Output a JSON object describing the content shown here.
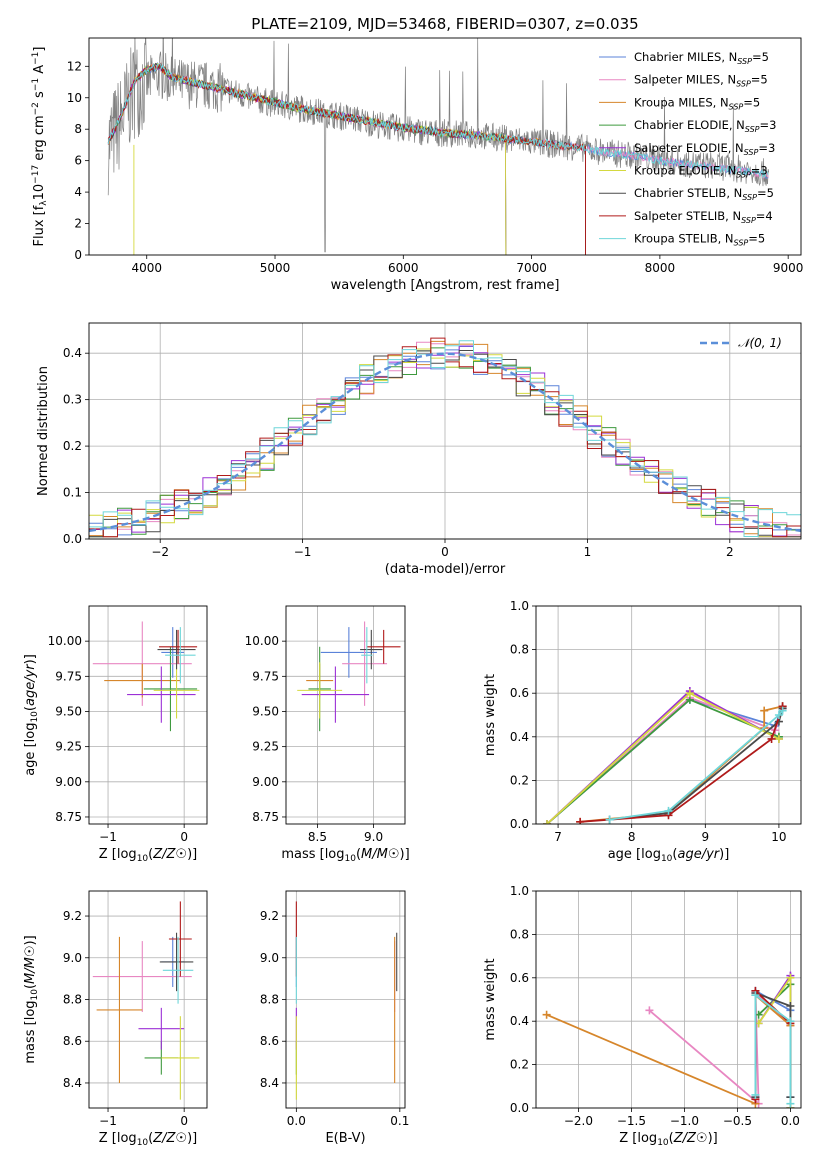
{
  "figure": {
    "title": "PLATE=2109, MJD=53468, FIBERID=0307, z=0.035"
  },
  "models": [
    {
      "name": "Chabrier MILES, N_SSP=5",
      "color": "#5b83d9"
    },
    {
      "name": "Salpeter MILES, N_SSP=5",
      "color": "#e887c2"
    },
    {
      "name": "Kroupa MILES, N_SSP=5",
      "color": "#d6862b"
    },
    {
      "name": "Chabrier ELODIE, N_SSP=3",
      "color": "#3f9a3f"
    },
    {
      "name": "Salpeter ELODIE, N_SSP=3",
      "color": "#9b30d6"
    },
    {
      "name": "Kroupa ELODIE, N_SSP=3",
      "color": "#d4d93f"
    },
    {
      "name": "Chabrier STELIB, N_SSP=5",
      "color": "#4a4a4a"
    },
    {
      "name": "Salpeter STELIB, N_SSP=4",
      "color": "#b01a1a"
    },
    {
      "name": "Kroupa STELIB, N_SSP=5",
      "color": "#6fd6d9"
    }
  ],
  "chart_data": [
    {
      "id": "spectrum",
      "type": "line",
      "xlabel": "wavelength [Angstrom, rest frame]",
      "ylabel": "Flux [f_λ 10^-17 erg cm^-2 s^-1 A^-1]",
      "xlim": [
        3550,
        9100
      ],
      "ylim": [
        0,
        13.8
      ],
      "xticks": [
        4000,
        5000,
        6000,
        7000,
        8000,
        9000
      ],
      "yticks": [
        0,
        2,
        4,
        6,
        8,
        10,
        12
      ],
      "legend": "top-right",
      "grid": false,
      "data_color": "#808080",
      "data_x": [
        3700,
        3800,
        3900,
        4000,
        4100,
        4200,
        4400,
        4600,
        4800,
        5000,
        5200,
        5400,
        5600,
        5800,
        6000,
        6200,
        6400,
        6600,
        6800,
        7000,
        7200,
        7400,
        7600,
        7800,
        8000,
        8200,
        8400,
        8600,
        8850
      ],
      "data_y": [
        7.0,
        8.5,
        10.5,
        11.0,
        11.5,
        11.0,
        10.8,
        10.6,
        10.0,
        9.6,
        9.3,
        9.0,
        8.7,
        8.3,
        8.0,
        7.8,
        7.7,
        7.6,
        7.4,
        7.2,
        7.0,
        6.8,
        6.5,
        6.3,
        6.1,
        5.8,
        5.7,
        5.5,
        5.2
      ],
      "model_x": [
        3700,
        3800,
        3900,
        4000,
        4100,
        4200,
        4400,
        4600,
        4800,
        5000,
        5200,
        5400,
        5600,
        5800,
        6000,
        6200,
        6400,
        6600,
        6800,
        7000,
        7200,
        7400,
        7600,
        7800,
        8000,
        8200,
        8400,
        8600,
        8850
      ],
      "model_y": [
        7.2,
        8.8,
        11.0,
        11.8,
        12.0,
        11.3,
        10.9,
        10.5,
        10.1,
        9.7,
        9.3,
        9.0,
        8.7,
        8.4,
        8.1,
        7.9,
        7.7,
        7.6,
        7.4,
        7.2,
        7.0,
        6.8,
        6.5,
        6.3,
        6.0,
        5.8,
        5.6,
        5.4,
        5.1
      ],
      "model_ranges": [
        [
          3700,
          9100
        ],
        [
          3700,
          9100
        ],
        [
          3700,
          7420
        ],
        [
          3700,
          6800
        ],
        [
          3700,
          6800
        ],
        [
          3900,
          6800
        ],
        [
          3700,
          7420
        ],
        [
          3700,
          7420
        ],
        [
          3700,
          9100
        ]
      ]
    },
    {
      "id": "residuals",
      "type": "line",
      "xlabel": "(data-model)/error",
      "ylabel": "Normed distribution",
      "xlim": [
        -2.5,
        2.5
      ],
      "ylim": [
        0,
        0.465
      ],
      "xticks": [
        -2,
        -1,
        0,
        1,
        2
      ],
      "yticks": [
        0.0,
        0.1,
        0.2,
        0.3,
        0.4
      ],
      "grid": true,
      "legend": "top-right",
      "reference_label": "𝒩(0, 1)",
      "reference_color": "#5b8fd9",
      "bin_width": 0.1
    },
    {
      "id": "age_vs_Z",
      "type": "scatter",
      "xlabel": "Z [log10(Z/Z☉)]",
      "ylabel": "age  [log10(age/yr)]",
      "xlim": [
        -1.25,
        0.3
      ],
      "ylim": [
        8.7,
        10.25
      ],
      "xticks": [
        -1,
        0
      ],
      "yticks": [
        8.75,
        9.0,
        9.25,
        9.5,
        9.75,
        10.0
      ],
      "grid": true,
      "points": [
        {
          "x": -0.15,
          "y": 9.92,
          "xerr": 0.15,
          "yerr": 0.18
        },
        {
          "x": -0.55,
          "y": 9.84,
          "xerr": 0.65,
          "yerr": 0.3
        },
        {
          "x": -0.55,
          "y": 9.72,
          "xerr": 0.5,
          "yerr": 0.12
        },
        {
          "x": -0.18,
          "y": 9.66,
          "xerr": 0.35,
          "yerr": 0.3
        },
        {
          "x": -0.3,
          "y": 9.62,
          "xerr": 0.45,
          "yerr": 0.2
        },
        {
          "x": -0.1,
          "y": 9.65,
          "xerr": 0.3,
          "yerr": 0.2
        },
        {
          "x": -0.1,
          "y": 9.94,
          "xerr": 0.25,
          "yerr": 0.14
        },
        {
          "x": -0.08,
          "y": 9.96,
          "xerr": 0.25,
          "yerr": 0.12
        },
        {
          "x": -0.05,
          "y": 9.9,
          "xerr": 0.2,
          "yerr": 0.2
        }
      ]
    },
    {
      "id": "age_vs_mass",
      "type": "scatter",
      "xlabel": "mass [log10(M/M☉)]",
      "ylabel": "",
      "xlim": [
        8.22,
        9.28
      ],
      "ylim": [
        8.7,
        10.25
      ],
      "xticks": [
        8.5,
        9.0
      ],
      "yticks": [
        8.75,
        9.0,
        9.25,
        9.5,
        9.75,
        10.0
      ],
      "grid": true,
      "points": [
        {
          "x": 8.78,
          "y": 9.92,
          "xerr": 0.25,
          "yerr": 0.18
        },
        {
          "x": 8.92,
          "y": 9.84,
          "xerr": 0.2,
          "yerr": 0.3
        },
        {
          "x": 8.52,
          "y": 9.72,
          "xerr": 0.12,
          "yerr": 0.12
        },
        {
          "x": 8.52,
          "y": 9.66,
          "xerr": 0.1,
          "yerr": 0.3
        },
        {
          "x": 8.66,
          "y": 9.62,
          "xerr": 0.3,
          "yerr": 0.2
        },
        {
          "x": 8.52,
          "y": 9.65,
          "xerr": 0.2,
          "yerr": 0.2
        },
        {
          "x": 8.98,
          "y": 9.94,
          "xerr": 0.1,
          "yerr": 0.14
        },
        {
          "x": 9.09,
          "y": 9.96,
          "xerr": 0.15,
          "yerr": 0.12
        },
        {
          "x": 8.94,
          "y": 9.9,
          "xerr": 0.05,
          "yerr": 0.2
        }
      ]
    },
    {
      "id": "mass_weight_vs_age",
      "type": "line",
      "xlabel": "age  [log10(age/yr)]",
      "ylabel": "mass weight",
      "xlim": [
        6.7,
        10.3
      ],
      "ylim": [
        0,
        1.0
      ],
      "xticks": [
        7,
        8,
        9,
        10
      ],
      "yticks": [
        0.0,
        0.2,
        0.4,
        0.6,
        0.8,
        1.0
      ],
      "grid": true,
      "series": [
        {
          "x": [
            6.85,
            8.79,
            9.95,
            10.05
          ],
          "y": [
            0.0,
            0.57,
            0.45,
            0.54
          ]
        },
        {
          "x": [
            6.85,
            8.79,
            9.95,
            10.05
          ],
          "y": [
            0.0,
            0.58,
            0.43,
            0.53
          ]
        },
        {
          "x": [
            7.3,
            8.5,
            9.8,
            9.8,
            10.05
          ],
          "y": [
            0.01,
            0.05,
            0.44,
            0.52,
            0.54
          ]
        },
        {
          "x": [
            6.85,
            8.79,
            10.0
          ],
          "y": [
            0.0,
            0.57,
            0.4
          ]
        },
        {
          "x": [
            6.85,
            8.79,
            10.0
          ],
          "y": [
            0.0,
            0.61,
            0.39
          ]
        },
        {
          "x": [
            6.85,
            8.79,
            10.0
          ],
          "y": [
            0.0,
            0.6,
            0.39
          ]
        },
        {
          "x": [
            7.7,
            8.5,
            10.0,
            10.05
          ],
          "y": [
            0.02,
            0.05,
            0.47,
            0.53
          ]
        },
        {
          "x": [
            7.3,
            8.5,
            9.9,
            10.05
          ],
          "y": [
            0.01,
            0.04,
            0.39,
            0.54
          ]
        },
        {
          "x": [
            7.7,
            8.5,
            10.0,
            10.05
          ],
          "y": [
            0.02,
            0.06,
            0.5,
            0.52
          ]
        }
      ]
    },
    {
      "id": "mass_vs_Z",
      "type": "scatter",
      "xlabel": "Z [log10(Z/Z☉)]",
      "ylabel": "mass [log10(M/M☉)]",
      "xlim": [
        -1.25,
        0.3
      ],
      "ylim": [
        8.28,
        9.32
      ],
      "xticks": [
        -1,
        0
      ],
      "yticks": [
        8.4,
        8.6,
        8.8,
        9.0,
        9.2
      ],
      "grid": true,
      "points": [
        {
          "x": -0.15,
          "y": 8.98,
          "xerr": 0.15,
          "yerr": 0.12
        },
        {
          "x": -0.55,
          "y": 8.91,
          "xerr": 0.65,
          "yerr": 0.17
        },
        {
          "x": -0.85,
          "y": 8.75,
          "xerr": 0.3,
          "yerr": 0.35
        },
        {
          "x": -0.3,
          "y": 8.52,
          "xerr": 0.22,
          "yerr": 0.08
        },
        {
          "x": -0.3,
          "y": 8.66,
          "xerr": 0.3,
          "yerr": 0.1
        },
        {
          "x": -0.05,
          "y": 8.52,
          "xerr": 0.25,
          "yerr": 0.2
        },
        {
          "x": -0.1,
          "y": 8.98,
          "xerr": 0.22,
          "yerr": 0.14
        },
        {
          "x": -0.05,
          "y": 9.09,
          "xerr": 0.15,
          "yerr": 0.18
        },
        {
          "x": -0.08,
          "y": 8.94,
          "xerr": 0.2,
          "yerr": 0.16
        }
      ]
    },
    {
      "id": "mass_vs_ebv",
      "type": "scatter",
      "xlabel": "E(B-V)",
      "ylabel": "",
      "xlim": [
        -0.01,
        0.105
      ],
      "ylim": [
        8.28,
        9.32
      ],
      "xticks": [
        0.0,
        0.1
      ],
      "yticks": [
        8.4,
        8.6,
        8.8,
        9.0,
        9.2
      ],
      "grid": true,
      "points": [
        {
          "x": 0.0,
          "y": 8.98,
          "yerr": 0.12
        },
        {
          "x": 0.095,
          "y": 8.91,
          "yerr": 0.17
        },
        {
          "x": 0.095,
          "y": 8.75,
          "yerr": 0.35
        },
        {
          "x": 0.0,
          "y": 8.52,
          "yerr": 0.08
        },
        {
          "x": 0.0,
          "y": 8.66,
          "yerr": 0.1
        },
        {
          "x": 0.0,
          "y": 8.52,
          "yerr": 0.2
        },
        {
          "x": 0.097,
          "y": 8.98,
          "yerr": 0.14
        },
        {
          "x": 0.0,
          "y": 9.09,
          "yerr": 0.18
        },
        {
          "x": 0.0,
          "y": 8.94,
          "yerr": 0.16
        }
      ]
    },
    {
      "id": "mass_weight_vs_Z",
      "type": "line",
      "xlabel": "Z [log10(Z/Z☉)]",
      "ylabel": "mass weight",
      "xlim": [
        -2.4,
        0.1
      ],
      "ylim": [
        0,
        1.0
      ],
      "xticks": [
        -2.0,
        -1.5,
        -1.0,
        -0.5,
        0.0
      ],
      "yticks": [
        0.0,
        0.2,
        0.4,
        0.6,
        0.8,
        1.0
      ],
      "grid": true,
      "series": [
        {
          "x": [
            -0.33,
            -0.33,
            0.0,
            0.0
          ],
          "y": [
            0.05,
            0.54,
            0.45,
            0.05
          ]
        },
        {
          "x": [
            -1.33,
            -0.3,
            -0.33,
            0.0
          ],
          "y": [
            0.45,
            0.02,
            0.53,
            0.38
          ]
        },
        {
          "x": [
            -2.3,
            -0.33,
            -0.33,
            0.0
          ],
          "y": [
            0.43,
            0.02,
            0.52,
            0.38
          ]
        },
        {
          "x": [
            -0.3,
            0.0,
            0.0
          ],
          "y": [
            0.43,
            0.57,
            0.0
          ]
        },
        {
          "x": [
            -0.3,
            0.0,
            0.0
          ],
          "y": [
            0.39,
            0.61,
            0.0
          ]
        },
        {
          "x": [
            -0.3,
            0.0,
            0.0
          ],
          "y": [
            0.39,
            0.6,
            0.0
          ]
        },
        {
          "x": [
            -0.33,
            -0.33,
            0.0,
            0.0
          ],
          "y": [
            0.05,
            0.53,
            0.47,
            0.05
          ]
        },
        {
          "x": [
            -0.33,
            -0.33,
            0.0
          ],
          "y": [
            0.04,
            0.54,
            0.39
          ]
        },
        {
          "x": [
            -0.33,
            -0.33,
            0.0,
            0.0
          ],
          "y": [
            0.06,
            0.52,
            0.4,
            0.02
          ]
        }
      ]
    }
  ]
}
